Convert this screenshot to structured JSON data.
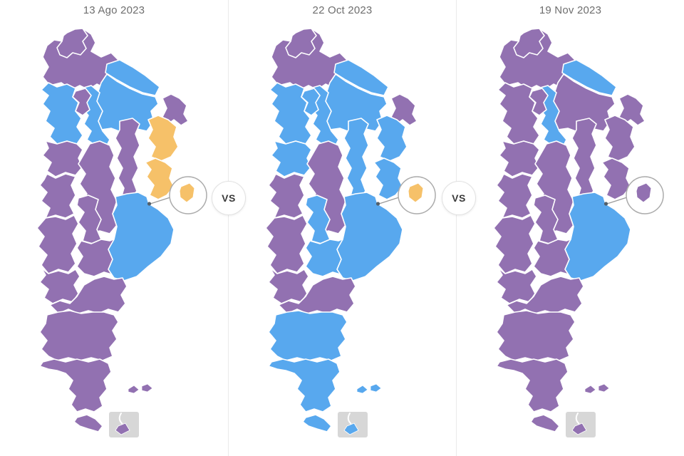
{
  "page": {
    "background": "#ffffff",
    "divider_color": "#eaeaea"
  },
  "vs_label": "VS",
  "colors": {
    "purple": "#9271b1",
    "blue": "#58a8ee",
    "orange": "#f6c169",
    "map_border": "#ffffff",
    "inset_gray": "#d7d7d7",
    "callout_stroke": "#ababab",
    "connector_gray": "#9b9b9b",
    "city_dot": "#53606b",
    "title_gray": "#6e6e6e"
  },
  "panels": [
    {
      "title": "13 Ago 2023",
      "results": {
        "jujuy": "purple",
        "salta": "purple",
        "formosa": "blue",
        "chaco": "blue",
        "misiones": "purple",
        "corrientes": "orange",
        "tucuman": "purple",
        "santiago_del_estero": "blue",
        "catamarca": "blue",
        "la_rioja": "purple",
        "santa_fe": "purple",
        "entre_rios": "orange",
        "cordoba": "purple",
        "san_juan": "purple",
        "san_luis": "purple",
        "mendoza": "purple",
        "la_pampa": "purple",
        "buenos_aires": "blue",
        "caba": "orange",
        "neuquen": "purple",
        "rio_negro": "purple",
        "chubut": "purple",
        "santa_cruz": "purple",
        "tierra_del_fuego": "purple"
      }
    },
    {
      "title": "22 Oct 2023",
      "results": {
        "jujuy": "purple",
        "salta": "purple",
        "formosa": "blue",
        "chaco": "blue",
        "misiones": "purple",
        "corrientes": "blue",
        "tucuman": "blue",
        "santiago_del_estero": "blue",
        "catamarca": "blue",
        "la_rioja": "blue",
        "santa_fe": "blue",
        "entre_rios": "blue",
        "cordoba": "purple",
        "san_juan": "purple",
        "san_luis": "blue",
        "mendoza": "purple",
        "la_pampa": "blue",
        "buenos_aires": "blue",
        "caba": "orange",
        "neuquen": "purple",
        "rio_negro": "purple",
        "chubut": "blue",
        "santa_cruz": "blue",
        "tierra_del_fuego": "blue"
      }
    },
    {
      "title": "19 Nov 2023",
      "results": {
        "jujuy": "purple",
        "salta": "purple",
        "formosa": "blue",
        "chaco": "purple",
        "misiones": "purple",
        "corrientes": "purple",
        "tucuman": "purple",
        "santiago_del_estero": "blue",
        "catamarca": "purple",
        "la_rioja": "purple",
        "santa_fe": "purple",
        "entre_rios": "purple",
        "cordoba": "purple",
        "san_juan": "purple",
        "san_luis": "purple",
        "mendoza": "purple",
        "la_pampa": "purple",
        "buenos_aires": "blue",
        "caba": "purple",
        "neuquen": "purple",
        "rio_negro": "purple",
        "chubut": "purple",
        "santa_cruz": "purple",
        "tierra_del_fuego": "purple"
      }
    }
  ]
}
